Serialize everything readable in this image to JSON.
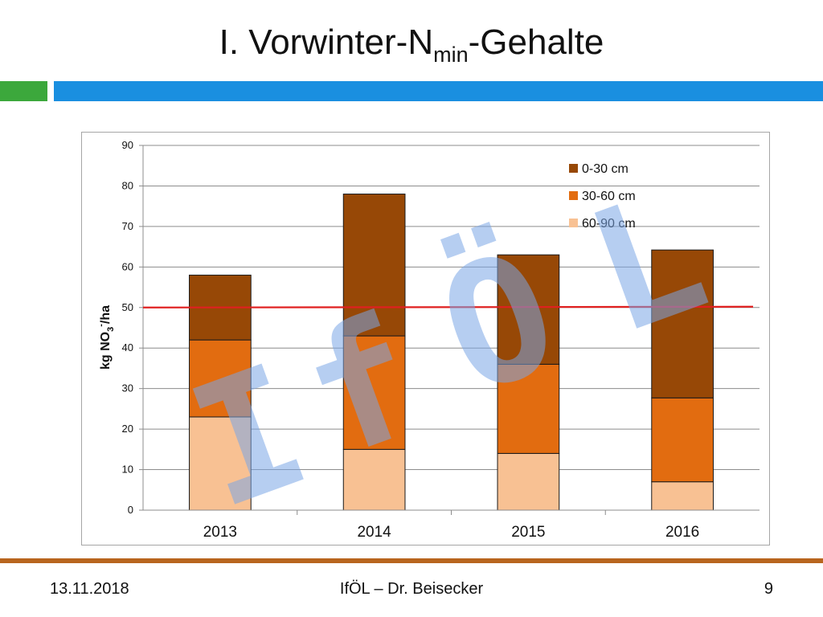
{
  "slide": {
    "title_main": "I. Vorwinter-N",
    "title_sub": "min",
    "title_tail": "-Gehalte"
  },
  "footer": {
    "date": "13.11.2018",
    "center": "IfÖL – Dr. Beisecker",
    "page": "9"
  },
  "watermark": {
    "letters": [
      "I",
      "f",
      "Ö",
      "L"
    ],
    "color": "#7aa6e6"
  },
  "chart_data": {
    "type": "bar",
    "stacked": true,
    "categories": [
      "2013",
      "2014",
      "2015",
      "2016"
    ],
    "series": [
      {
        "name": "60-90 cm",
        "values": [
          23,
          15,
          14,
          7
        ],
        "color": "#f8c193"
      },
      {
        "name": "30-60 cm",
        "values": [
          19,
          28,
          22,
          20.7
        ],
        "color": "#e26c10"
      },
      {
        "name": "0-30 cm",
        "values": [
          16,
          35,
          27,
          36.5
        ],
        "color": "#974806"
      }
    ],
    "legend_order": [
      "0-30 cm",
      "30-60 cm",
      "60-90 cm"
    ],
    "legend_position": "top-right",
    "ylabel_main": "kg NO",
    "ylabel_sub": "3",
    "ylabel_sup": "-",
    "ylabel_tail": "/ha",
    "ylim": [
      0,
      90
    ],
    "yticks": [
      0,
      10,
      20,
      30,
      40,
      50,
      60,
      70,
      80,
      90
    ],
    "grid": true,
    "reference_line": {
      "value": 50,
      "color": "#e02020"
    }
  }
}
